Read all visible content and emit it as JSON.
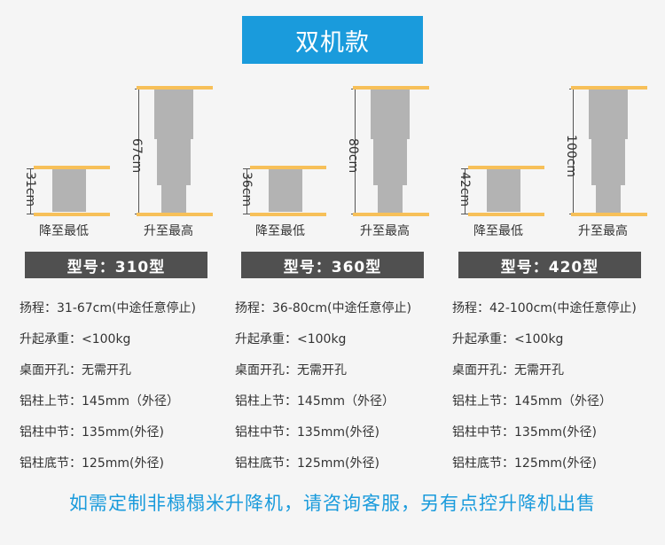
{
  "title": "双机款",
  "products": [
    {
      "min_height": "31cm",
      "max_height": "67cm",
      "min_label": "降至最低",
      "max_label": "升至最高",
      "model": "型号：310型",
      "specs": [
        "扬程：31-67cm(中途任意停止)",
        "升起承重：<100kg",
        "桌面开孔：无需开孔",
        "铝柱上节：145mm（外径）",
        "铝柱中节：135mm(外径)",
        "铝柱底节：125mm(外径)"
      ]
    },
    {
      "min_height": "36cm",
      "max_height": "80cm",
      "min_label": "降至最低",
      "max_label": "升至最高",
      "model": "型号：360型",
      "specs": [
        "扬程：36-80cm(中途任意停止)",
        "升起承重：<100kg",
        "桌面开孔：无需开孔",
        "铝柱上节：145mm（外径）",
        "铝柱中节：135mm(外径)",
        "铝柱底节：125mm(外径)"
      ]
    },
    {
      "min_height": "42cm",
      "max_height": "100cm",
      "min_label": "降至最低",
      "max_label": "升至最高",
      "model": "型号：420型",
      "specs": [
        "扬程：42-100cm(中途任意停止)",
        "升起承重：<100kg",
        "桌面开孔：无需开孔",
        "铝柱上节：145mm（外径）",
        "铝柱中节：135mm(外径)",
        "铝柱底节：125mm(外径)"
      ]
    }
  ],
  "footer": "如需定制非榻榻米升降机，请咨询客服，另有点控升降机出售",
  "colors": {
    "accent": "#1a9bdc",
    "plate": "#f7c059",
    "column": "#b3b3b3",
    "model_bar": "#505050"
  }
}
